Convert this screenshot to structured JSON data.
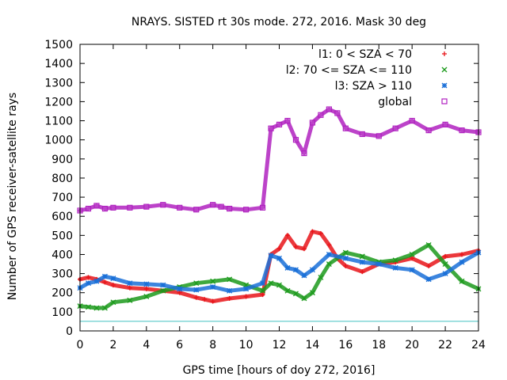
{
  "chart_data": {
    "type": "scatter",
    "title": "NRAYS. SISTED rt 30s mode. 272, 2016. Mask 30 deg",
    "xlabel": "GPS time [hours of doy 272, 2016]",
    "ylabel": "Number of GPS receiver-satellite rays",
    "xlim": [
      0,
      24
    ],
    "ylim": [
      0,
      1500
    ],
    "x_ticks": [
      "0",
      "2",
      "4",
      "6",
      "8",
      "10",
      "12",
      "14",
      "16",
      "18",
      "20",
      "22",
      "24"
    ],
    "y_ticks": [
      "0",
      "100",
      "200",
      "300",
      "400",
      "500",
      "600",
      "700",
      "800",
      "900",
      "1000",
      "1100",
      "1200",
      "1300",
      "1400",
      "1500"
    ],
    "legend_position": "top-right",
    "reference_line": {
      "y": 50,
      "color": "#41c0c0"
    },
    "series": [
      {
        "name": "l1: 0 < SZA < 70",
        "marker": "+",
        "color": "#e8151a",
        "x": [
          0,
          0.5,
          1,
          1.5,
          2,
          3,
          4,
          5,
          6,
          7,
          7.5,
          8,
          9,
          10,
          11,
          11.5,
          12,
          12.5,
          13,
          13.5,
          14,
          14.5,
          15,
          15.5,
          16,
          17,
          18,
          19,
          20,
          21,
          22,
          23,
          24
        ],
        "values": [
          270,
          280,
          270,
          255,
          240,
          225,
          220,
          210,
          200,
          175,
          165,
          155,
          170,
          180,
          190,
          400,
          430,
          500,
          440,
          430,
          520,
          510,
          450,
          380,
          340,
          310,
          350,
          360,
          380,
          340,
          390,
          400,
          420
        ]
      },
      {
        "name": "l2: 70 <= SZA <= 110",
        "marker": "x",
        "color": "#1c9a1c",
        "x": [
          0,
          0.5,
          1,
          1.5,
          2,
          3,
          4,
          5,
          6,
          7,
          8,
          9,
          10,
          11,
          11.5,
          12,
          12.5,
          13,
          13.5,
          14,
          14.5,
          15,
          16,
          17,
          18,
          19,
          20,
          21,
          22,
          23,
          24
        ],
        "values": [
          130,
          125,
          120,
          120,
          150,
          160,
          180,
          210,
          230,
          250,
          260,
          270,
          240,
          210,
          250,
          240,
          210,
          195,
          170,
          200,
          280,
          350,
          410,
          390,
          360,
          370,
          400,
          450,
          350,
          260,
          220
        ]
      },
      {
        "name": "l3: SZA > 110",
        "marker": "*",
        "color": "#1a70d8",
        "x": [
          0,
          0.5,
          1,
          1.5,
          2,
          3,
          4,
          5,
          6,
          7,
          8,
          9,
          10,
          11,
          11.5,
          12,
          12.5,
          13,
          13.5,
          14,
          15,
          16,
          17,
          18,
          19,
          20,
          21,
          22,
          23,
          24
        ],
        "values": [
          225,
          250,
          260,
          285,
          275,
          250,
          245,
          240,
          220,
          215,
          230,
          210,
          220,
          250,
          395,
          380,
          330,
          320,
          290,
          320,
          400,
          380,
          360,
          350,
          330,
          320,
          270,
          300,
          360,
          410
        ]
      },
      {
        "name": "global",
        "marker": "square",
        "color": "#b022c0",
        "x": [
          0,
          0.5,
          1,
          1.5,
          2,
          3,
          4,
          5,
          6,
          7,
          8,
          8.5,
          9,
          10,
          11,
          11.5,
          12,
          12.5,
          13,
          13.5,
          14,
          14.5,
          15,
          15.5,
          16,
          17,
          18,
          19,
          20,
          21,
          22,
          23,
          24
        ],
        "values": [
          630,
          640,
          655,
          640,
          645,
          645,
          650,
          660,
          645,
          635,
          660,
          650,
          640,
          635,
          645,
          1060,
          1080,
          1100,
          1000,
          930,
          1090,
          1130,
          1160,
          1140,
          1060,
          1030,
          1020,
          1060,
          1100,
          1050,
          1080,
          1050,
          1040
        ]
      }
    ]
  }
}
